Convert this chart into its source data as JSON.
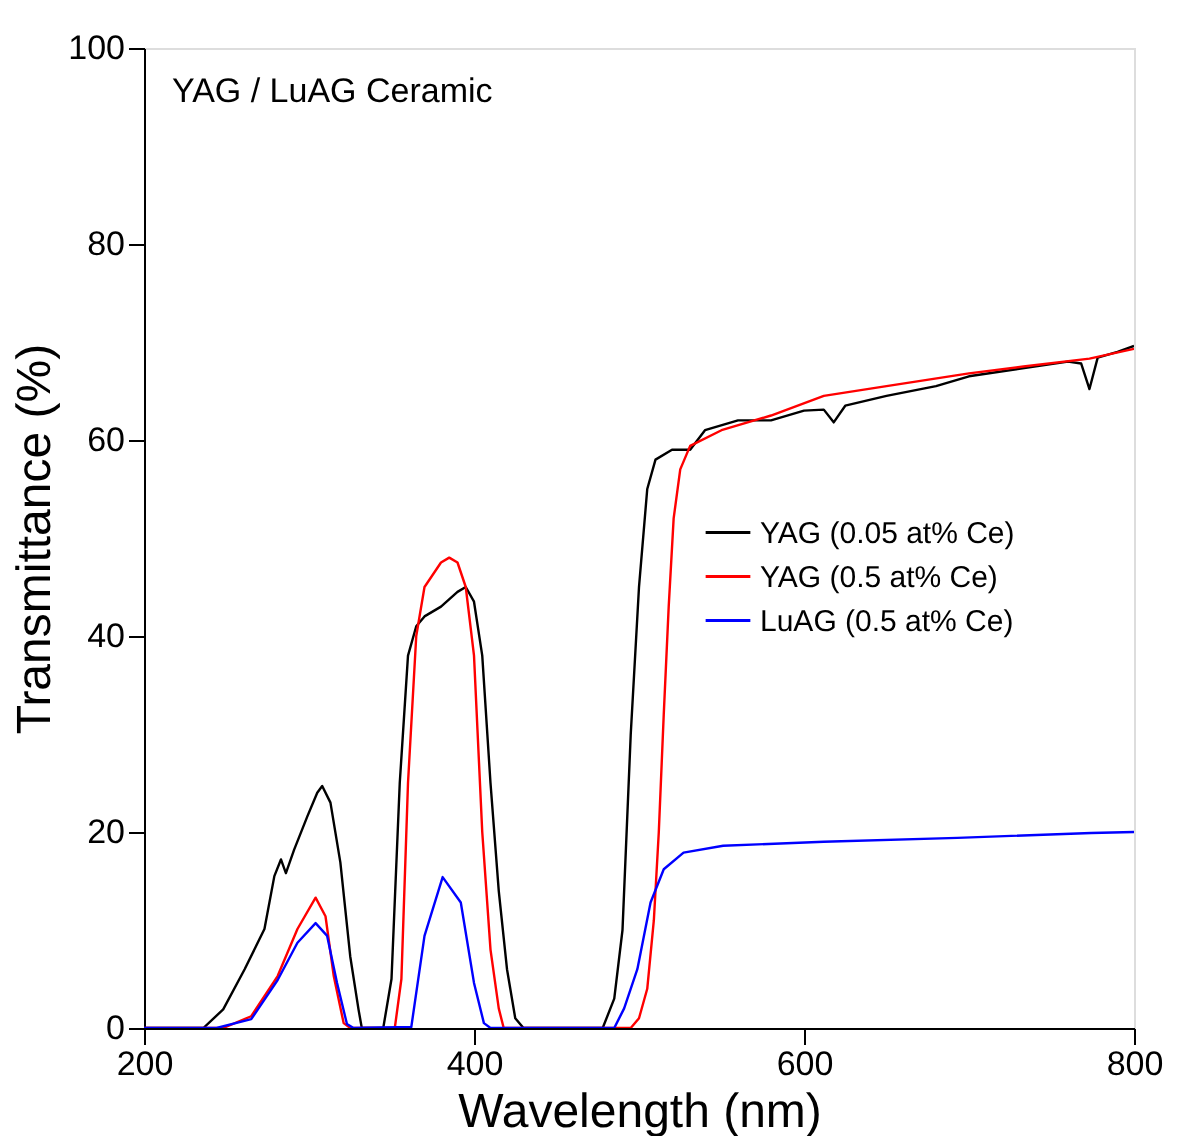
{
  "chart_data": {
    "type": "line",
    "xlabel": "Wavelength (nm)",
    "ylabel": "Transmittance (%)",
    "annotations": [
      "YAG / LuAG Ceramic"
    ],
    "xlim": [
      200,
      800
    ],
    "xticks": [
      200,
      400,
      600,
      800
    ],
    "ylim": [
      0,
      100
    ],
    "yticks": [
      0,
      20,
      40,
      60,
      80,
      100
    ],
    "grid": false,
    "legend": "right",
    "marker": "none",
    "line_style": "solid",
    "series": [
      {
        "name": "YAG (0.05 at% Ce)",
        "color": "#000000",
        "x": [
          200,
          236,
          248,
          261,
          273,
          279,
          283,
          286,
          291,
          299,
          305,
          308,
          313,
          319,
          325,
          330,
          332,
          345,
          350,
          355,
          360,
          365,
          370,
          380,
          390,
          395,
          400,
          405,
          410,
          415,
          420,
          425,
          430,
          478,
          485,
          490,
          495,
          500,
          505,
          510,
          520,
          531,
          540,
          560,
          580,
          600,
          612,
          618,
          625,
          650,
          680,
          700,
          760,
          768,
          773,
          778,
          790,
          800
        ],
        "values": [
          0,
          0,
          1.9,
          6.0,
          10.1,
          15.5,
          17.2,
          15.8,
          18.2,
          21.6,
          24.0,
          24.7,
          23.0,
          16.9,
          7.3,
          1.9,
          0,
          0,
          5,
          25,
          38,
          41,
          42,
          43,
          44.5,
          45,
          43.5,
          38,
          25,
          14,
          6,
          1,
          0,
          0,
          3,
          10,
          30,
          45,
          55,
          58,
          59,
          59,
          61,
          62,
          62,
          63,
          63.1,
          61.8,
          63.5,
          64.5,
          65.5,
          66.5,
          68,
          67.8,
          65.2,
          68.4,
          69,
          69.6
        ]
      },
      {
        "name": "YAG (0.5 at% Ce)",
        "color": "#ff0000",
        "x": [
          200,
          248,
          265,
          281,
          293,
          304,
          310,
          315,
          321,
          325,
          352,
          356,
          360,
          365,
          370,
          380,
          385,
          390,
          395,
          400,
          405,
          410,
          415,
          418,
          495,
          500,
          505,
          509,
          512,
          515,
          518,
          521,
          525,
          531,
          550,
          580,
          612,
          650,
          700,
          733,
          773,
          800
        ],
        "values": [
          0,
          0,
          1.2,
          5.3,
          10.1,
          13.3,
          11.4,
          5.3,
          0.5,
          0,
          0,
          5,
          25,
          40,
          45,
          47.5,
          48,
          47.5,
          45,
          38,
          20,
          8,
          2,
          0,
          0,
          1,
          4,
          11,
          20,
          32,
          43,
          52,
          57,
          59.4,
          61,
          62.5,
          64.5,
          65.5,
          66.8,
          67.5,
          68.3,
          69.3
        ]
      },
      {
        "name": "LuAG (0.5 at% Ce)",
        "color": "#0000ff",
        "x": [
          200,
          244,
          265,
          281,
          293,
          304,
          311,
          317,
          323,
          327,
          362,
          370,
          381,
          392,
          400,
          406,
          410,
          485,
          491,
          499,
          507,
          515,
          527,
          551,
          612,
          693,
          774,
          800
        ],
        "values": [
          0,
          0,
          0.9,
          4.9,
          8.7,
          10.7,
          9.4,
          4.6,
          0.4,
          0,
          0.1,
          9.4,
          15.4,
          12.8,
          4.6,
          0.5,
          0,
          0,
          2,
          6,
          12.8,
          16.2,
          17.9,
          18.6,
          19,
          19.4,
          19.9,
          20.0
        ]
      }
    ]
  }
}
